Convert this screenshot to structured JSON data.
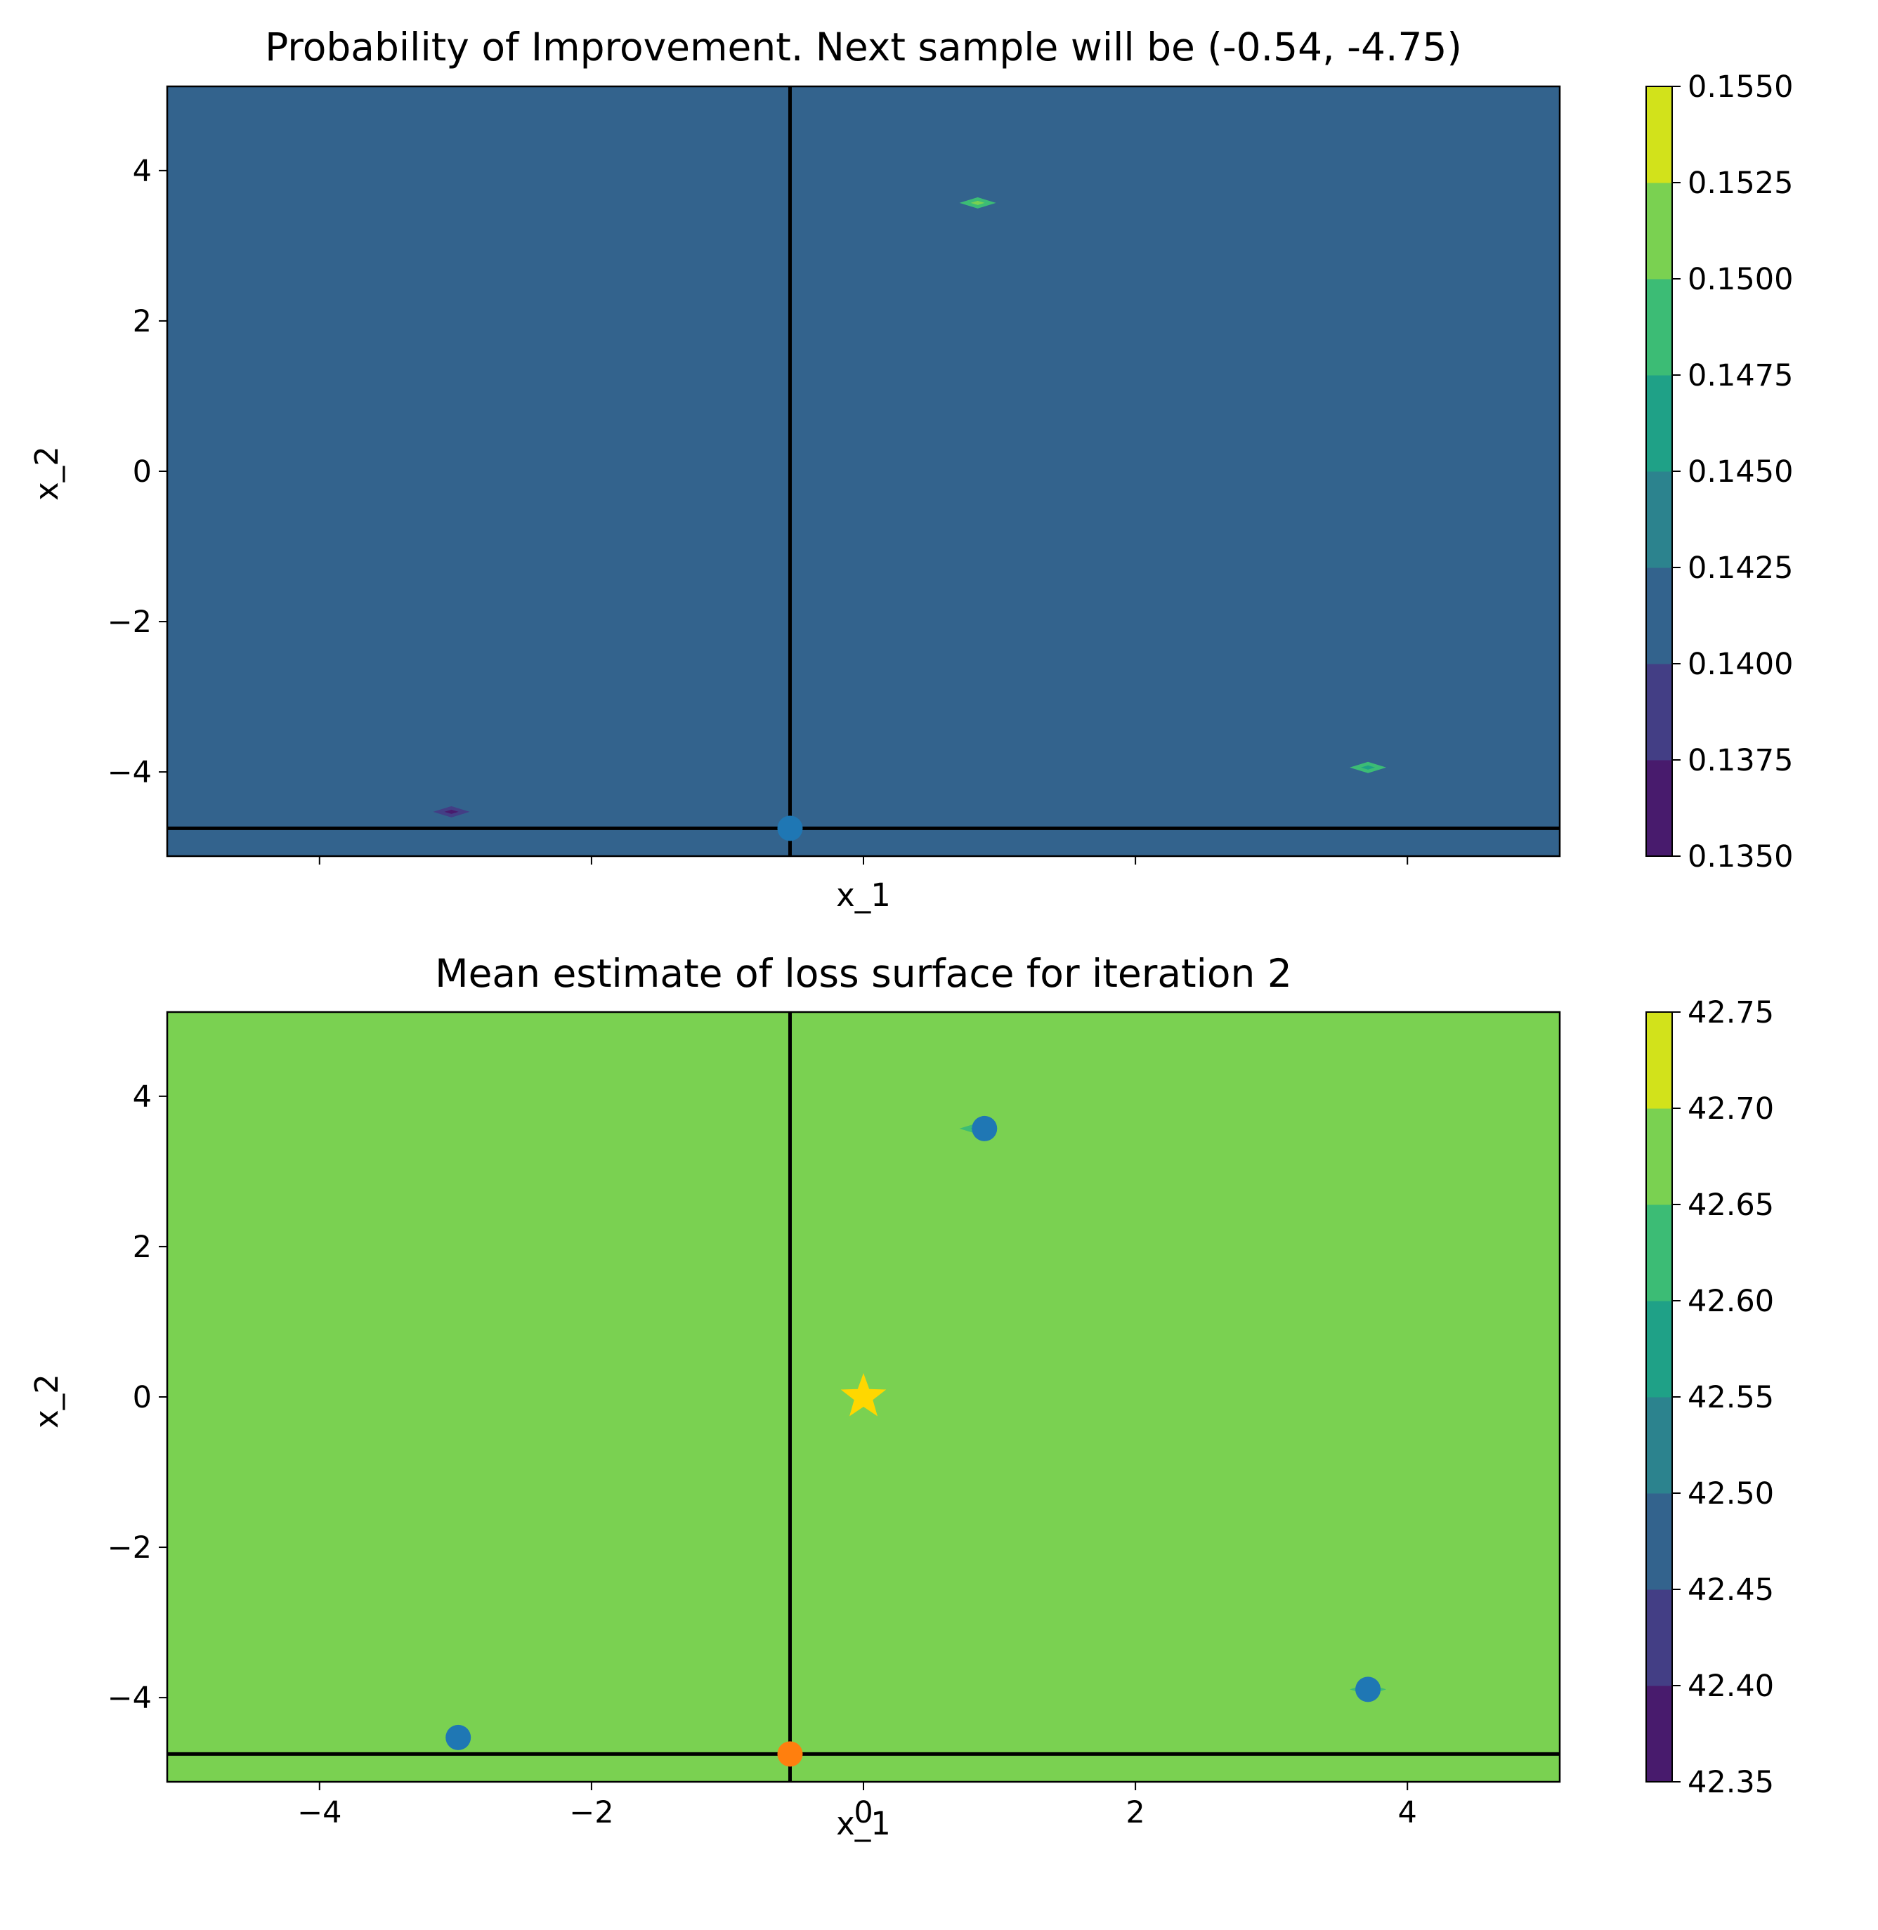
{
  "chart_data": [
    {
      "type": "heatmap",
      "title": "Probability of Improvement. Next sample will be (-0.54, -4.75)",
      "xlabel": "x_1",
      "ylabel": "x_2",
      "xlim": [
        -5.12,
        5.12
      ],
      "ylim": [
        -5.12,
        5.12
      ],
      "x_ticks": [
        -4,
        -2,
        0,
        2,
        4
      ],
      "x_tick_labels": [
        "",
        "",
        "",
        "",
        ""
      ],
      "y_ticks": [
        4,
        2,
        0,
        -2,
        -4
      ],
      "y_tick_labels": [
        "4",
        "2",
        "0",
        "−2",
        "−4"
      ],
      "background_value": 0.141,
      "background_color": "#33638d",
      "levels": [
        0.135,
        0.1375,
        0.14,
        0.1425,
        0.145,
        0.1475,
        0.15,
        0.1525,
        0.155
      ],
      "level_colors": [
        "#481b6d",
        "#433e85",
        "#33638d",
        "#2c838e",
        "#1fa187",
        "#3cbc75",
        "#7ad151",
        "#d2e21b"
      ],
      "colorbar_tick_labels": [
        "0.1350",
        "0.1375",
        "0.1400",
        "0.1425",
        "0.1450",
        "0.1475",
        "0.1500",
        "0.1525",
        "0.1550"
      ],
      "blobs": [
        {
          "x": 0.84,
          "y": 3.57,
          "color": "#3cbc75",
          "core_color": "#7ad151"
        },
        {
          "x": 3.71,
          "y": -3.94,
          "color": "#3cbc75",
          "core_color": "#1fa187"
        },
        {
          "x": -3.03,
          "y": -4.53,
          "color": "#433e85",
          "core_color": "#481b6d"
        }
      ],
      "points": [
        {
          "x": -0.54,
          "y": -4.75,
          "color": "#1f77b4"
        }
      ],
      "vline_x": -0.54,
      "hline_y": -4.75
    },
    {
      "type": "heatmap",
      "title": "Mean estimate of loss surface for iteration 2",
      "xlabel": "x_1",
      "ylabel": "x_2",
      "xlim": [
        -5.12,
        5.12
      ],
      "ylim": [
        -5.12,
        5.12
      ],
      "x_ticks": [
        -4,
        -2,
        0,
        2,
        4
      ],
      "x_tick_labels": [
        "−4",
        "−2",
        "0",
        "2",
        "4"
      ],
      "y_ticks": [
        4,
        2,
        0,
        -2,
        -4
      ],
      "y_tick_labels": [
        "4",
        "2",
        "0",
        "−2",
        "−4"
      ],
      "background_value": 42.68,
      "background_color": "#7ad151",
      "levels": [
        42.35,
        42.4,
        42.45,
        42.5,
        42.55,
        42.6,
        42.65,
        42.7,
        42.75
      ],
      "level_colors": [
        "#481b6d",
        "#433e85",
        "#33638d",
        "#2c838e",
        "#1fa187",
        "#3cbc75",
        "#7ad151",
        "#d2e21b"
      ],
      "colorbar_tick_labels": [
        "42.35",
        "42.40",
        "42.45",
        "42.50",
        "42.55",
        "42.60",
        "42.65",
        "42.70",
        "42.75"
      ],
      "blobs": [
        {
          "x": 0.84,
          "y": 3.57,
          "color": "#3cbc75",
          "core_color": "#1fa187"
        },
        {
          "x": 3.71,
          "y": -3.89,
          "color": "#3cbc75",
          "core_color": "#3cbc75"
        }
      ],
      "points": [
        {
          "x": 0.89,
          "y": 3.57,
          "color": "#1f77b4"
        },
        {
          "x": 3.71,
          "y": -3.89,
          "color": "#1f77b4"
        },
        {
          "x": -2.98,
          "y": -4.53,
          "color": "#1f77b4"
        },
        {
          "x": -0.54,
          "y": -4.75,
          "color": "#ff7f0e"
        }
      ],
      "star": {
        "x": 0,
        "y": 0,
        "color": "#ffd700"
      },
      "vline_x": -0.54,
      "hline_y": -4.75
    }
  ]
}
